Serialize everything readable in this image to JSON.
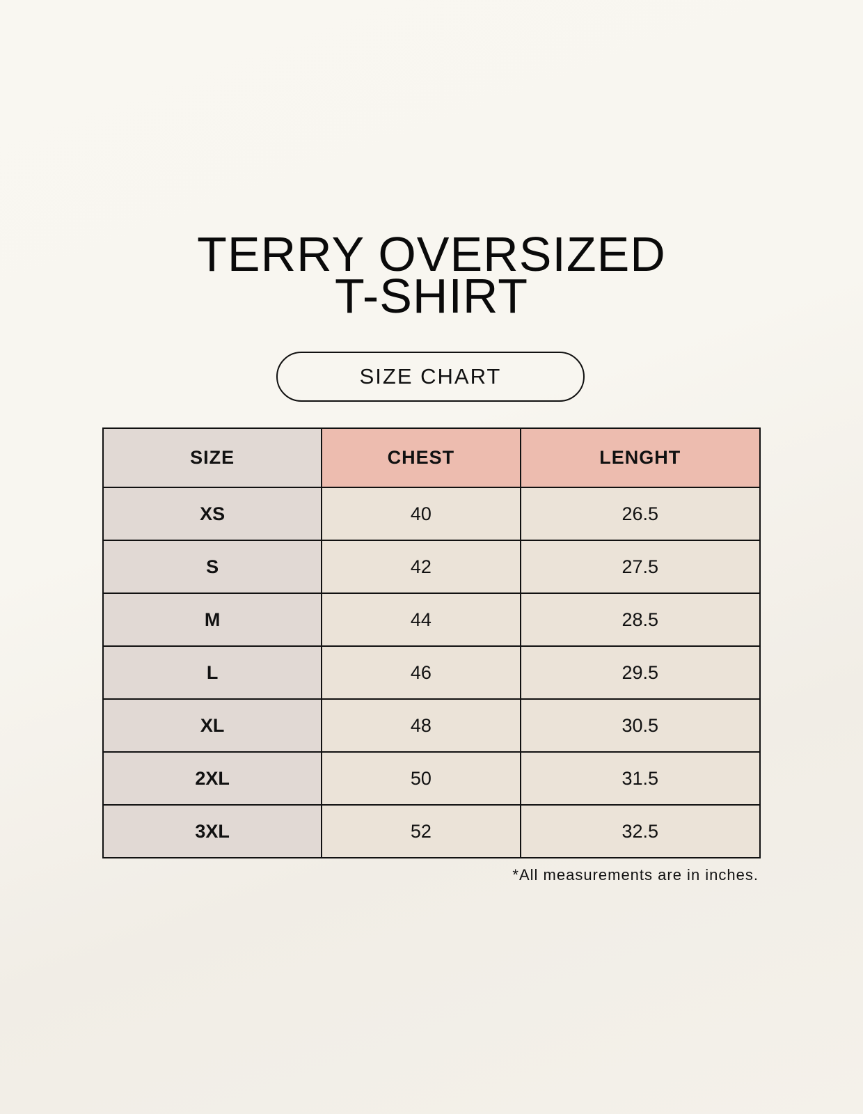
{
  "title": {
    "line1": "TERRY OVERSIZED",
    "line2": "T-SHIRT"
  },
  "badge": "SIZE CHART",
  "colors": {
    "size_column": "#e1d9d4",
    "header_accent": "#edbcaf",
    "cells": "#ebe3d8"
  },
  "table": {
    "headers": [
      "SIZE",
      "CHEST",
      "LENGHT"
    ],
    "rows": [
      [
        "XS",
        "40",
        "26.5"
      ],
      [
        "S",
        "42",
        "27.5"
      ],
      [
        "M",
        "44",
        "28.5"
      ],
      [
        "L",
        "46",
        "29.5"
      ],
      [
        "XL",
        "48",
        "30.5"
      ],
      [
        "2XL",
        "50",
        "31.5"
      ],
      [
        "3XL",
        "52",
        "32.5"
      ]
    ]
  },
  "footnote": "*All measurements are in inches."
}
